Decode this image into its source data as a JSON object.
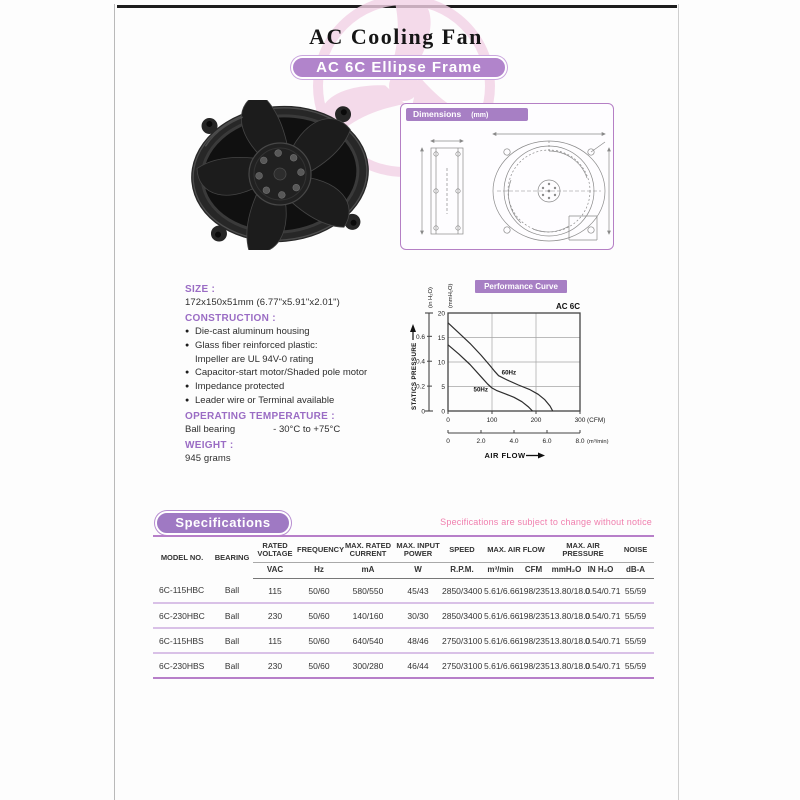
{
  "header": {
    "title": "AC Cooling Fan",
    "banner": "AC 6C Ellipse Frame"
  },
  "dimensions": {
    "label": "Dimensions",
    "unit": "(mm)"
  },
  "info": {
    "bullet_char": "●",
    "size_heading": "SIZE :",
    "size_value": "172x150x51mm (6.77\"x5.91\"x2.01\")",
    "construction_heading": "CONSTRUCTION :",
    "construction_items": [
      {
        "text": "Die-cast aluminum housing",
        "bullet": true
      },
      {
        "text": "Glass fiber reinforced plastic:",
        "bullet": true
      },
      {
        "text": "Impeller are UL 94V-0 rating",
        "bullet": false
      },
      {
        "text": "Capacitor-start motor/Shaded pole motor",
        "bullet": true
      },
      {
        "text": "Impedance protected",
        "bullet": true
      },
      {
        "text": "Leader wire  or Terminal available",
        "bullet": true
      }
    ],
    "operating_heading": "OPERATING TEMPERATURE :",
    "bearing_type": "Ball bearing",
    "temperature_range": "- 30°C to +75°C",
    "weight_heading": "WEIGHT :",
    "weight_value": "945 grams"
  },
  "chart_data": {
    "type": "line",
    "title": "Performance Curve",
    "corner_label": "AC 6C",
    "xlabel": "AIR FLOW",
    "ylabel": "STATICS PRESSURE",
    "xlim": [
      0,
      300
    ],
    "ylim": [
      0,
      20
    ],
    "grid": true,
    "x_axis": {
      "primary_unit": "(CFM)",
      "primary_ticks": [
        0,
        100,
        200,
        300
      ],
      "secondary_unit": "(m³/min)",
      "secondary_ticks": [
        "0",
        "2.0",
        "4.0",
        "6.0",
        "8.0"
      ]
    },
    "y_axis": {
      "primary_unit": "(mmH₂O)",
      "primary_ticks": [
        0,
        5,
        10,
        15,
        20
      ],
      "secondary_unit": "(in H₂O)",
      "secondary_ticks": [
        "0",
        "0.2",
        "0.4",
        "0.6"
      ]
    },
    "series": [
      {
        "name": "60Hz",
        "label_at": [
          122,
          7.4
        ],
        "points": [
          [
            0,
            18
          ],
          [
            25,
            15.9
          ],
          [
            50,
            13.8
          ],
          [
            75,
            11.4
          ],
          [
            95,
            9.3
          ],
          [
            105,
            8.2
          ],
          [
            115,
            7.2
          ],
          [
            135,
            6.3
          ],
          [
            160,
            5.3
          ],
          [
            185,
            4.4
          ],
          [
            205,
            3.4
          ],
          [
            220,
            2.3
          ],
          [
            232,
            1.0
          ],
          [
            238,
            0
          ]
        ]
      },
      {
        "name": "50Hz",
        "label_at": [
          58,
          4.0
        ],
        "points": [
          [
            0,
            13.5
          ],
          [
            25,
            11.6
          ],
          [
            50,
            9.5
          ],
          [
            75,
            7.0
          ],
          [
            90,
            5.5
          ],
          [
            100,
            4.7
          ],
          [
            110,
            4.2
          ],
          [
            130,
            3.5
          ],
          [
            150,
            2.8
          ],
          [
            168,
            1.9
          ],
          [
            182,
            0.9
          ],
          [
            192,
            0
          ]
        ]
      }
    ]
  },
  "specifications": {
    "banner": "Specifications",
    "note": "Specifications are subject to change without notice",
    "columns": [
      {
        "label": "MODEL NO.",
        "rowspan": true
      },
      {
        "label": "BEARING",
        "rowspan": true
      },
      {
        "label": "RATED VOLTAGE",
        "unit": "VAC"
      },
      {
        "label": "FREQUENCY",
        "unit": "Hz"
      },
      {
        "label": "MAX. RATED CURRENT",
        "unit": "mA"
      },
      {
        "label": "MAX. INPUT POWER",
        "unit": "W"
      },
      {
        "label": "SPEED",
        "unit": "R.P.M."
      },
      {
        "label": "MAX. AIR FLOW",
        "units": [
          "m³/min",
          "CFM"
        ]
      },
      {
        "label": "MAX. AIR PRESSURE",
        "units": [
          "mmH₂O",
          "IN H₂O"
        ]
      },
      {
        "label": "NOISE",
        "unit": "dB-A"
      }
    ],
    "rows": [
      [
        "6C-115HBC",
        "Ball",
        "115",
        "50/60",
        "580/550",
        "45/43",
        "2850/3400",
        "5.61/6.66",
        "198/235",
        "13.80/18.0",
        "0.54/0.71",
        "55/59"
      ],
      [
        "6C-230HBC",
        "Ball",
        "230",
        "50/60",
        "140/160",
        "30/30",
        "2850/3400",
        "5.61/6.66",
        "198/235",
        "13.80/18.0",
        "0.54/0.71",
        "55/59"
      ],
      [
        "6C-115HBS",
        "Ball",
        "115",
        "50/60",
        "640/540",
        "48/46",
        "2750/3100",
        "5.61/6.66",
        "198/235",
        "13.80/18.0",
        "0.54/0.71",
        "55/59"
      ],
      [
        "6C-230HBS",
        "Ball",
        "230",
        "50/60",
        "300/280",
        "46/44",
        "2750/3100",
        "5.61/6.66",
        "198/235",
        "13.80/18.0",
        "0.54/0.71",
        "55/59"
      ]
    ]
  }
}
